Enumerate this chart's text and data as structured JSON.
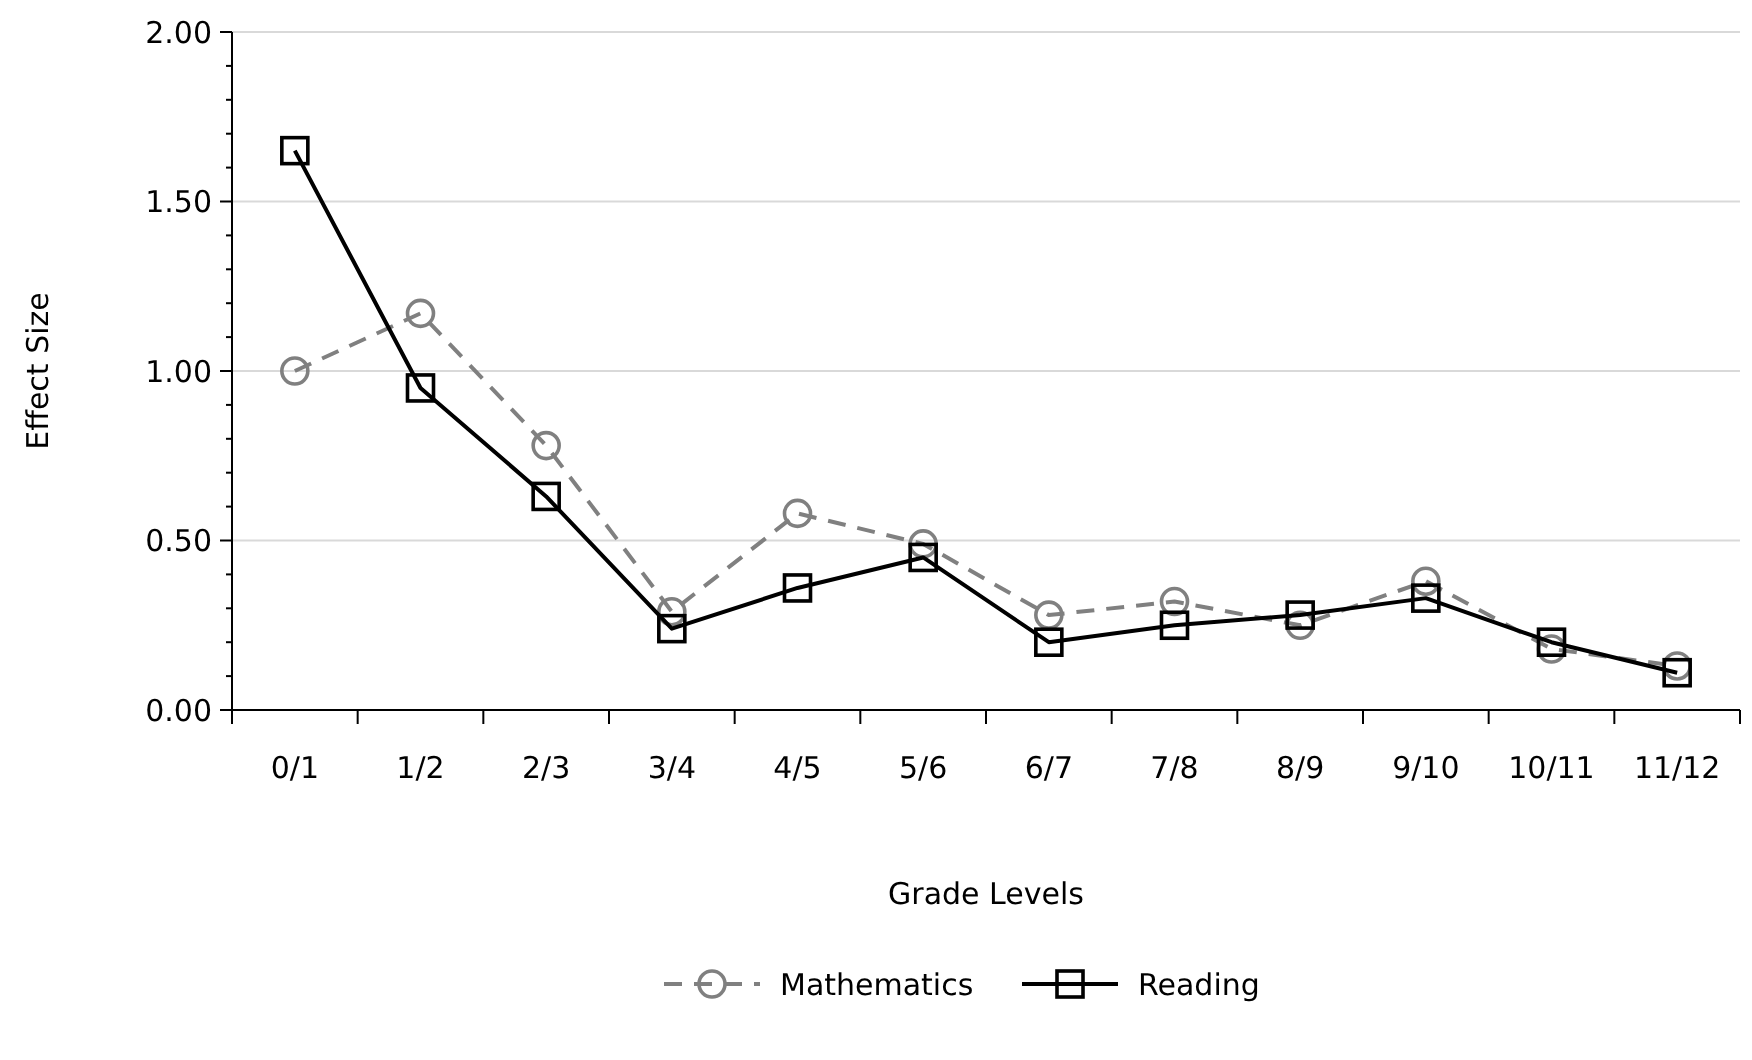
{
  "chart_data": {
    "type": "line",
    "xlabel": "Grade Levels",
    "ylabel": "Effect Size",
    "categories": [
      "0/1",
      "1/2",
      "2/3",
      "3/4",
      "4/5",
      "5/6",
      "6/7",
      "7/8",
      "8/9",
      "9/10",
      "10/11",
      "11/12"
    ],
    "series": [
      {
        "name": "Mathematics",
        "color": "#808080",
        "line_style": "dashed",
        "marker": "circle",
        "values": [
          1.0,
          1.17,
          0.78,
          0.29,
          0.58,
          0.49,
          0.28,
          0.32,
          0.25,
          0.38,
          0.18,
          0.13
        ]
      },
      {
        "name": "Reading",
        "color": "#000000",
        "line_style": "solid",
        "marker": "square",
        "values": [
          1.65,
          0.95,
          0.63,
          0.24,
          0.36,
          0.45,
          0.2,
          0.25,
          0.28,
          0.33,
          0.2,
          0.11
        ]
      }
    ],
    "ylim": [
      0,
      2
    ],
    "yticks": [
      {
        "value": 0,
        "label": "0.00"
      },
      {
        "value": 0.1,
        "label": null
      },
      {
        "value": 0.2,
        "label": null
      },
      {
        "value": 0.3,
        "label": null
      },
      {
        "value": 0.4,
        "label": null
      },
      {
        "value": 0.5,
        "label": "0.50"
      },
      {
        "value": 0.6,
        "label": null
      },
      {
        "value": 0.7,
        "label": null
      },
      {
        "value": 0.8,
        "label": null
      },
      {
        "value": 0.9,
        "label": null
      },
      {
        "value": 1,
        "label": "1.00"
      },
      {
        "value": 1.1,
        "label": null
      },
      {
        "value": 1.2,
        "label": null
      },
      {
        "value": 1.3,
        "label": null
      },
      {
        "value": 1.4,
        "label": null
      },
      {
        "value": 1.5,
        "label": "1.50"
      },
      {
        "value": 1.6,
        "label": null
      },
      {
        "value": 1.7,
        "label": null
      },
      {
        "value": 1.8,
        "label": null
      },
      {
        "value": 1.9,
        "label": null
      },
      {
        "value": 2,
        "label": "2.00"
      }
    ],
    "grid": "y",
    "legend": "bottom"
  }
}
